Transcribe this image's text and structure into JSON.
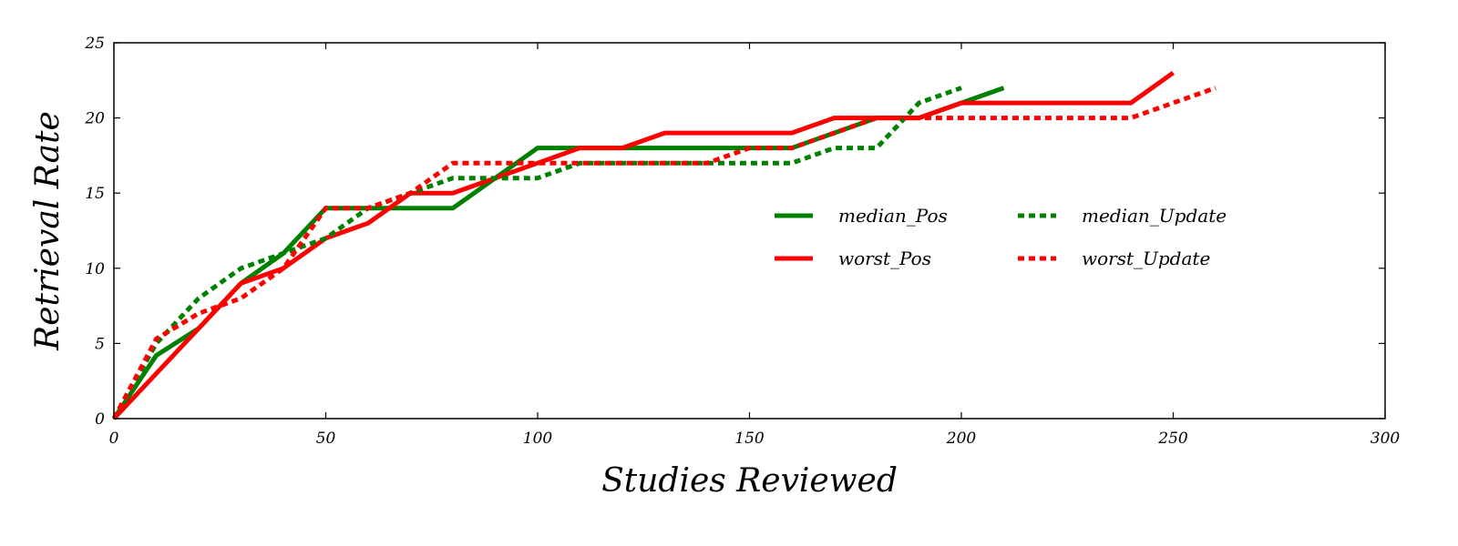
{
  "chart_data": {
    "type": "line",
    "title": "",
    "xlabel": "Studies Reviewed",
    "ylabel": "Retrieval Rate",
    "xlim": [
      0,
      300
    ],
    "ylim": [
      0,
      25
    ],
    "xticks": [
      0,
      50,
      100,
      150,
      200,
      250,
      300
    ],
    "yticks": [
      0,
      5,
      10,
      15,
      20,
      25
    ],
    "grid": false,
    "legend_position": "center-right",
    "series": [
      {
        "name": "median_Pos",
        "color": "#008000",
        "style": "solid",
        "x": [
          0,
          10,
          20,
          30,
          40,
          50,
          60,
          70,
          80,
          90,
          100,
          110,
          120,
          130,
          140,
          150,
          160,
          170,
          180,
          190,
          200,
          210
        ],
        "y": [
          0,
          4.2,
          6,
          9,
          11,
          14,
          14,
          14,
          14,
          16,
          18,
          18,
          18,
          18,
          18,
          18,
          18,
          19,
          20,
          20,
          21,
          22
        ]
      },
      {
        "name": "worst_Pos",
        "color": "#ff0000",
        "style": "solid",
        "x": [
          0,
          10,
          20,
          30,
          40,
          50,
          60,
          70,
          80,
          90,
          100,
          110,
          120,
          130,
          140,
          150,
          160,
          170,
          180,
          190,
          200,
          210,
          220,
          230,
          240,
          250
        ],
        "y": [
          0,
          3,
          6,
          9,
          10,
          12,
          13,
          15,
          15,
          16,
          17,
          18,
          18,
          19,
          19,
          19,
          19,
          20,
          20,
          20,
          21,
          21,
          21,
          21,
          21,
          23
        ]
      },
      {
        "name": "median_Update",
        "color": "#008000",
        "style": "dotted",
        "x": [
          0,
          10,
          20,
          30,
          40,
          50,
          60,
          70,
          80,
          90,
          100,
          110,
          120,
          130,
          140,
          150,
          160,
          170,
          180,
          190,
          200
        ],
        "y": [
          0,
          5,
          8,
          10,
          11,
          12,
          14,
          15,
          16,
          16,
          16,
          17,
          17,
          17,
          17,
          17,
          17,
          18,
          18,
          21,
          22
        ]
      },
      {
        "name": "worst_Update",
        "color": "#ff0000",
        "style": "dotted",
        "x": [
          0,
          10,
          20,
          30,
          40,
          50,
          60,
          70,
          80,
          90,
          100,
          110,
          120,
          130,
          140,
          150,
          160,
          170,
          180,
          190,
          200,
          210,
          220,
          230,
          240,
          250,
          260
        ],
        "y": [
          0,
          5.3,
          7,
          8,
          10,
          14,
          14,
          15,
          17,
          17,
          17,
          17,
          17,
          17,
          17,
          18,
          18,
          19,
          20,
          20,
          20,
          20,
          20,
          20,
          20,
          21,
          22
        ]
      }
    ],
    "legend_order": [
      "median_Pos",
      "median_Update",
      "worst_Pos",
      "worst_Update"
    ]
  }
}
